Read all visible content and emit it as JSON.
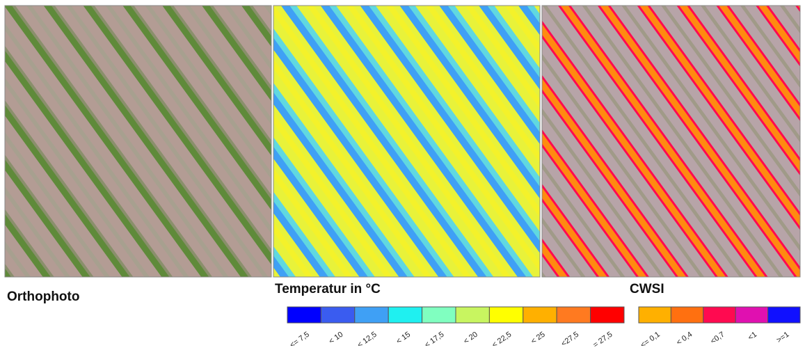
{
  "panels": [
    {
      "title": "Orthophoto"
    },
    {
      "title": "Temperatur in °C",
      "legend": [
        {
          "label": "<= 7,5",
          "color": "#0000ff"
        },
        {
          "label": "< 10",
          "color": "#3a5cf0"
        },
        {
          "label": "< 12,5",
          "color": "#3fa0f5"
        },
        {
          "label": "< 15",
          "color": "#1ff0f0"
        },
        {
          "label": "< 17,5",
          "color": "#80ffc0"
        },
        {
          "label": "< 20",
          "color": "#c8f560"
        },
        {
          "label": "< 22,5",
          "color": "#ffff00"
        },
        {
          "label": "< 25",
          "color": "#ffb000"
        },
        {
          "label": "<27,5",
          "color": "#ff7a20"
        },
        {
          "label": "= 27,5",
          "color": "#ff0000"
        }
      ]
    },
    {
      "title": "CWSI",
      "legend": [
        {
          "label": "<= 0,1",
          "color": "#ffb000"
        },
        {
          "label": "< 0,4",
          "color": "#ff7010"
        },
        {
          "label": "<0,7",
          "color": "#ff0a50"
        },
        {
          "label": "<1",
          "color": "#e010b0"
        },
        {
          "label": ">=1",
          "color": "#1010ff"
        }
      ]
    }
  ]
}
